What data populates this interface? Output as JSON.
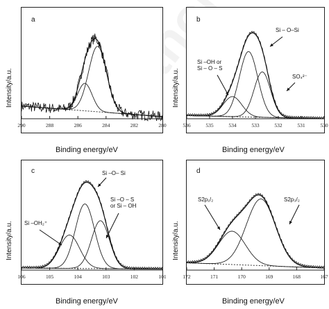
{
  "watermark": "Author co",
  "panels": [
    {
      "id": "a",
      "letter": "a",
      "ylabel": "Intensity/a.u.",
      "xlabel": "Binding energy/eV",
      "annotations": []
    },
    {
      "id": "b",
      "letter": "b",
      "ylabel": "Intensity/a.u.",
      "xlabel": "Binding energy/eV",
      "annotations": [
        "Si – O–Si",
        "Si –OH or\nSi – O – S",
        "SO₄²⁻"
      ]
    },
    {
      "id": "c",
      "letter": "c",
      "ylabel": "Intensity/a.u.",
      "xlabel": "Binding energy/eV",
      "annotations": [
        "Si –O– Si",
        "Si –O – S\nor Si – OH",
        "Si –OH₂⁺"
      ]
    },
    {
      "id": "d",
      "letter": "d",
      "ylabel": "Intensity/a.u.",
      "xlabel": "Binding energy/eV",
      "annotations": [
        "S2p₁/₂",
        "S2p₃/₂"
      ]
    }
  ],
  "chart_data": [
    {
      "type": "line",
      "panel": "a",
      "xlim": [
        290,
        280
      ],
      "x_ticks": [
        290,
        288,
        286,
        284,
        282,
        280
      ],
      "peaks": [
        {
          "center": 284.6,
          "fwhm": 1.5,
          "height": 0.62
        },
        {
          "center": 285.5,
          "fwhm": 1.2,
          "height": 0.26
        }
      ],
      "baseline": {
        "start": 0.12,
        "end": 0.02
      },
      "noise": 0.05
    },
    {
      "type": "line",
      "panel": "b",
      "xlim": [
        536,
        530
      ],
      "x_ticks": [
        536,
        535,
        534,
        533,
        532,
        531,
        530
      ],
      "peaks": [
        {
          "center": 533.3,
          "fwhm": 0.95,
          "height": 0.62
        },
        {
          "center": 532.7,
          "fwhm": 0.85,
          "height": 0.43
        },
        {
          "center": 534.0,
          "fwhm": 0.95,
          "height": 0.19
        }
      ],
      "baseline": {
        "start": 0.03,
        "end": 0.0
      },
      "noise": 0
    },
    {
      "type": "line",
      "panel": "c",
      "xlim": [
        106,
        101
      ],
      "x_ticks": [
        106,
        105,
        104,
        103,
        102,
        101
      ],
      "peaks": [
        {
          "center": 103.75,
          "fwhm": 0.8,
          "height": 0.62
        },
        {
          "center": 103.2,
          "fwhm": 0.75,
          "height": 0.46
        },
        {
          "center": 104.3,
          "fwhm": 0.85,
          "height": 0.32
        }
      ],
      "baseline": {
        "start": 0.02,
        "end": 0.01
      },
      "noise": 0
    },
    {
      "type": "line",
      "panel": "d",
      "xlim": [
        172,
        167
      ],
      "x_ticks": [
        172,
        171,
        170,
        169,
        168,
        167
      ],
      "peaks": [
        {
          "center": 169.3,
          "fwhm": 1.25,
          "height": 0.64
        },
        {
          "center": 170.35,
          "fwhm": 1.15,
          "height": 0.32
        }
      ],
      "baseline": {
        "start": 0.07,
        "end": 0.02
      },
      "noise": 0
    }
  ]
}
